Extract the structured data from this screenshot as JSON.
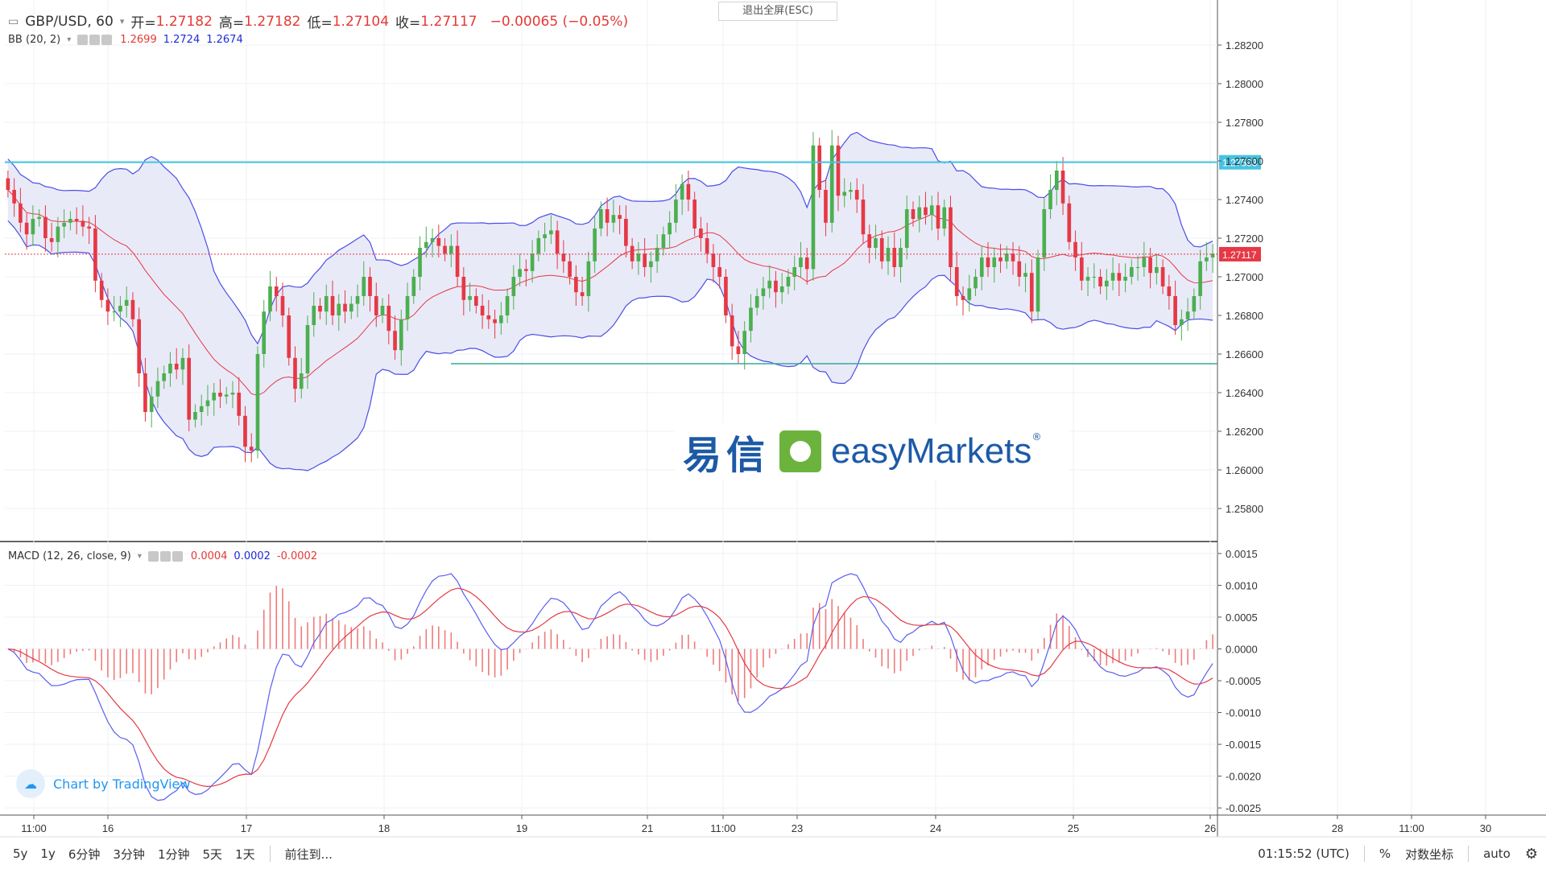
{
  "header": {
    "symbol": "GBP/USD, 60",
    "open_label": "开=",
    "open": "1.27182",
    "high_label": "高=",
    "high": "1.27182",
    "low_label": "低=",
    "low": "1.27104",
    "close_label": "收=",
    "close": "1.27117",
    "change": "−0.00065 (−0.05%)"
  },
  "bb": {
    "label": "BB (20, 2)",
    "v1": "1.2699",
    "v2": "1.2724",
    "v3": "1.2674"
  },
  "macd": {
    "label": "MACD (12, 26, close, 9)",
    "v1": "0.0004",
    "v2": "0.0002",
    "v3": "-0.0002"
  },
  "fullscreen_exit": "退出全屏(ESC)",
  "logo": {
    "zh": "易信",
    "en": "easyMarkets",
    "reg": "®"
  },
  "tradingview": "Chart by TradingView",
  "bottom": {
    "ranges": [
      "5y",
      "1y",
      "6分钟",
      "3分钟",
      "1分钟",
      "5天",
      "1天"
    ],
    "goto": "前往到...",
    "time": "01:15:52 (UTC)",
    "percent": "%",
    "log": "对数坐标",
    "auto": "auto"
  },
  "colors": {
    "up": "#4caf50",
    "down": "#e53945",
    "bb_band": "#4a4ee6",
    "bb_mid": "#e53945",
    "fill": "#e7e8f7",
    "resistance": "#46c3e0",
    "support": "#3aa89b"
  },
  "chart_data": [
    {
      "type": "candlestick",
      "title": "GBP/USD, 60",
      "y_ticks": [
        "1.28200",
        "1.28000",
        "1.27800",
        "1.27600",
        "1.27400",
        "1.27200",
        "1.27000",
        "1.26800",
        "1.26600",
        "1.26400",
        "1.26200",
        "1.26000",
        "1.25800"
      ],
      "ylim": [
        1.2565,
        1.283
      ],
      "x_ticks": [
        "11:00",
        "16",
        "17",
        "18",
        "19",
        "21",
        "11:00",
        "23",
        "24",
        "25",
        "26",
        "28",
        "11:00",
        "30"
      ],
      "current_price": "1.27117",
      "resistance_level": "1.27593",
      "support_level": 1.2655,
      "closes": [
        1.2745,
        1.2738,
        1.2728,
        1.2722,
        1.273,
        1.2731,
        1.272,
        1.2718,
        1.2726,
        1.2728,
        1.273,
        1.2729,
        1.2726,
        1.2725,
        1.2698,
        1.2688,
        1.2682,
        1.2682,
        1.2685,
        1.2688,
        1.2678,
        1.265,
        1.263,
        1.2638,
        1.2646,
        1.265,
        1.2655,
        1.2652,
        1.2658,
        1.2626,
        1.263,
        1.2633,
        1.2636,
        1.264,
        1.2638,
        1.2639,
        1.264,
        1.2628,
        1.2612,
        1.261,
        1.266,
        1.2682,
        1.2695,
        1.269,
        1.268,
        1.2658,
        1.2642,
        1.265,
        1.2675,
        1.2685,
        1.2682,
        1.269,
        1.268,
        1.2686,
        1.2682,
        1.2686,
        1.269,
        1.27,
        1.269,
        1.268,
        1.2685,
        1.2672,
        1.2662,
        1.2678,
        1.269,
        1.27,
        1.2715,
        1.2718,
        1.272,
        1.2716,
        1.2712,
        1.2716,
        1.27,
        1.2688,
        1.269,
        1.2685,
        1.268,
        1.2678,
        1.2676,
        1.268,
        1.269,
        1.27,
        1.2704,
        1.2703,
        1.2712,
        1.272,
        1.2722,
        1.2724,
        1.2712,
        1.2708,
        1.27,
        1.2692,
        1.269,
        1.2708,
        1.2725,
        1.2735,
        1.2728,
        1.2732,
        1.273,
        1.2716,
        1.2708,
        1.2712,
        1.2705,
        1.2708,
        1.2715,
        1.2722,
        1.2728,
        1.274,
        1.2748,
        1.274,
        1.2725,
        1.272,
        1.2712,
        1.2705,
        1.27,
        1.268,
        1.2664,
        1.266,
        1.2672,
        1.2684,
        1.269,
        1.2694,
        1.2698,
        1.2692,
        1.2695,
        1.27,
        1.2705,
        1.271,
        1.2704,
        1.2768,
        1.2745,
        1.2728,
        1.2768,
        1.2742,
        1.2744,
        1.2745,
        1.274,
        1.2722,
        1.2715,
        1.272,
        1.2708,
        1.2715,
        1.2705,
        1.2715,
        1.2735,
        1.273,
        1.2736,
        1.2732,
        1.2737,
        1.2725,
        1.2736,
        1.2705,
        1.269,
        1.2688,
        1.2694,
        1.27,
        1.271,
        1.2705,
        1.271,
        1.2708,
        1.2712,
        1.2708,
        1.27,
        1.2702,
        1.2682,
        1.271,
        1.2735,
        1.2745,
        1.2755,
        1.2738,
        1.2718,
        1.271,
        1.2698,
        1.27,
        1.27,
        1.2695,
        1.2698,
        1.2702,
        1.2698,
        1.27,
        1.2705,
        1.2705,
        1.271,
        1.2702,
        1.2705,
        1.2695,
        1.269,
        1.2675,
        1.2678,
        1.2682,
        1.269,
        1.2708,
        1.271,
        1.2712
      ]
    },
    {
      "type": "line",
      "title": "MACD (12, 26, close, 9)",
      "y_ticks": [
        "0.0015",
        "0.0010",
        "0.0005",
        "0.0000",
        "-0.0005",
        "-0.0010",
        "-0.0015",
        "-0.0020",
        "-0.0025"
      ],
      "ylim": [
        -0.0026,
        0.0016
      ]
    }
  ]
}
